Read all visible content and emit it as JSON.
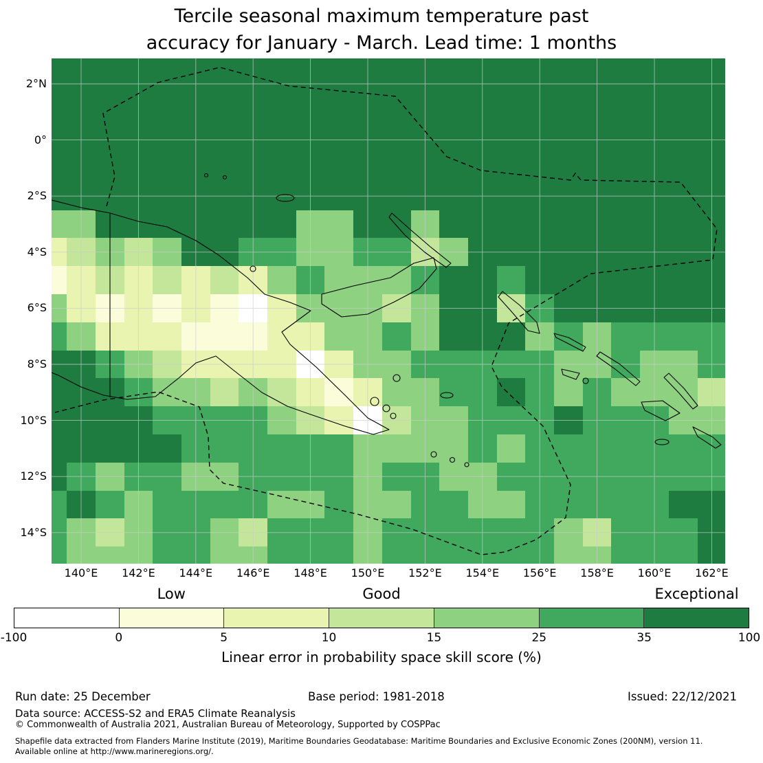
{
  "title": {
    "line1": "Tercile seasonal maximum temperature past",
    "line2": "accuracy for January - March. Lead time: 1 months"
  },
  "chart_data": {
    "type": "heatmap",
    "title": "Tercile seasonal maximum temperature past accuracy for January - March. Lead time: 1 months",
    "region": "Papua New Guinea and Solomon Islands EEZ area",
    "x_ticks": [
      "140°E",
      "142°E",
      "144°E",
      "146°E",
      "148°E",
      "150°E",
      "152°E",
      "154°E",
      "156°E",
      "158°E",
      "160°E",
      "162°E"
    ],
    "y_ticks": [
      "2°N",
      "0°",
      "2°S",
      "4°S",
      "6°S",
      "8°S",
      "10°S",
      "12°S",
      "14°S"
    ],
    "lon_range": [
      139.0,
      162.5
    ],
    "lat_range": [
      -15.1,
      2.9
    ],
    "cell_size_deg": 1,
    "grid_origin_note": "rows north to south, row 0 centered at 3N; cols west to east, col 0 centered at 139E",
    "levels": [
      "-100 to 0",
      "0 to 5",
      "5 to 10",
      "10 to 15",
      "15 to 25",
      "25 to 35",
      "35 to 100"
    ],
    "palette": [
      "#ffffff",
      "#fbfcd9",
      "#e8f4b0",
      "#c4e69a",
      "#8ed180",
      "#41a95e",
      "#1e7c40"
    ],
    "grid": [
      "666666666666666666666666",
      "666666666666666666666666",
      "666666666666666666666666",
      "666666666666666666666666",
      "666666666666666666666666",
      "666666666666666666666666",
      "446666666446646666666666",
      "234346655445534666666666",
      "123232324544456656666666",
      "421212102444346635666666",
      "542221112244546664545555",
      "665432222024455555445445",
      "666544343212445565454443",
      "666655554320344555655544",
      "666665555554444545555555",
      "654554455554554455555555",
      "565455554454455445555566",
      "543455435554555555435556",
      "544455445554555555445556"
    ]
  },
  "colorbar": {
    "tick_labels": [
      "-100",
      "0",
      "5",
      "10",
      "15",
      "25",
      "35",
      "100"
    ],
    "categories": [
      {
        "label": "Low",
        "segment": 1
      },
      {
        "label": "Good",
        "segment": 3
      },
      {
        "label": "Exceptional",
        "segment": 6
      }
    ],
    "caption": "Linear error in probability space skill score (%)"
  },
  "footer": {
    "run_date": "Run date: 25 December",
    "base_period": "Base period: 1981-2018",
    "issued": "Issued: 22/12/2021",
    "data_source": "Data source: ACCESS-S2 and ERA5 Climate Reanalysis",
    "copyright": "© Commonwealth of Australia 2021, Australian Bureau of Meteorology, Supported by COSPPac",
    "shapefile_line1": "Shapefile data extracted from Flanders Marine Institute (2019), Maritime Boundaries Geodatabase: Maritime Boundaries and Exclusive Economic Zones (200NM), version 11.",
    "shapefile_line2": "Available online at http://www.marineregions.org/."
  }
}
